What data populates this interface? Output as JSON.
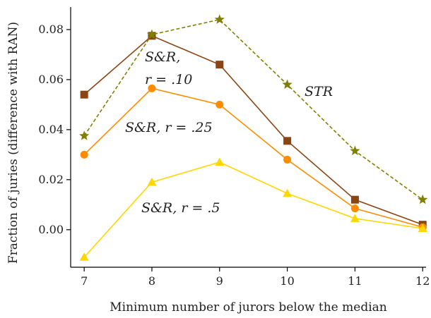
{
  "chart_data": {
    "type": "line",
    "xlabel": "Minimum number of jurors below the median",
    "ylabel": "Fraction of juries (difference with RAN)",
    "xlim": [
      6.8,
      12.05
    ],
    "ylim": [
      -0.015,
      0.089
    ],
    "x_ticks": [
      "7",
      "8",
      "9",
      "10",
      "11",
      "12"
    ],
    "y_ticks": [
      "0.00",
      "0.02",
      "0.04",
      "0.06",
      "0.08"
    ],
    "grid": false,
    "x": [
      7,
      8,
      9,
      10,
      11,
      12
    ],
    "series": [
      {
        "name": "S&R, r = .10",
        "label_lines": [
          "S&R,",
          "r = .10"
        ],
        "color": "#8B4513",
        "marker": "square",
        "dash": "solid",
        "values": [
          0.054,
          0.0775,
          0.066,
          0.0355,
          0.012,
          0.002
        ]
      },
      {
        "name": "S&R, r = .25",
        "label_lines": [
          "S&R, r = .25"
        ],
        "color": "#FF8C00",
        "marker": "circle",
        "dash": "solid",
        "values": [
          0.03,
          0.0565,
          0.05,
          0.028,
          0.0085,
          0.001
        ]
      },
      {
        "name": "S&R, r = .5",
        "label_lines": [
          "S&R, r = .5"
        ],
        "color": "#FFD700",
        "marker": "triangle",
        "dash": "solid",
        "values": [
          -0.011,
          0.019,
          0.027,
          0.0145,
          0.0045,
          0.0005
        ]
      },
      {
        "name": "STR",
        "label_lines": [
          "STR"
        ],
        "color": "#808000",
        "marker": "star",
        "dash": "dashed",
        "values": [
          0.0375,
          0.078,
          0.084,
          0.058,
          0.0315,
          0.012
        ]
      }
    ]
  }
}
